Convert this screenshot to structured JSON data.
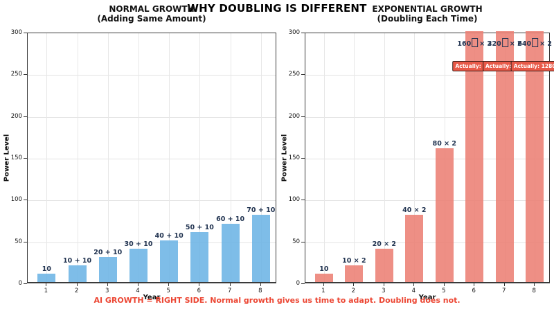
{
  "figure": {
    "title": "WHY DOUBLING IS DIFFERENT",
    "caption": "AI GROWTH = RIGHT SIDE. Normal growth gives us time to adapt. Doubling does not."
  },
  "colors": {
    "normal_bar": "#6cb4e5",
    "exponential_bar": "#ec8074",
    "value_label_text": "#223451",
    "caption_text": "#ec4633",
    "badge_background": "#e85948",
    "badge_border": "#3b1f1a",
    "badge_text": "#ffffff",
    "gridline": "#e3e3e3",
    "axis_spine": "#3a3a3a"
  },
  "chart_data": [
    {
      "type": "bar",
      "title": "NORMAL GROWTH",
      "subtitle": "(Adding Same Amount)",
      "xlabel": "Year",
      "ylabel": "Power Level",
      "categories": [
        "1",
        "2",
        "3",
        "4",
        "5",
        "6",
        "7",
        "8"
      ],
      "values": [
        10,
        20,
        30,
        40,
        50,
        60,
        70,
        80
      ],
      "bar_labels": [
        "10",
        "10 + 10",
        "20 + 10",
        "30 + 10",
        "40 + 10",
        "50 + 10",
        "60 + 10",
        "70 + 10"
      ],
      "bar_color": "#6cb4e5",
      "ylim": [
        0,
        300
      ],
      "yticks": [
        "0",
        "50",
        "100",
        "150",
        "200",
        "250",
        "300"
      ],
      "grid": true,
      "legend_position": "none"
    },
    {
      "type": "bar",
      "title": "EXPONENTIAL GROWTH",
      "subtitle": "(Doubling Each Time)",
      "xlabel": "Year",
      "ylabel": "Power Level",
      "categories": [
        "1",
        "2",
        "3",
        "4",
        "5",
        "6",
        "7",
        "8"
      ],
      "values": [
        10,
        20,
        40,
        80,
        160,
        320,
        640,
        1280
      ],
      "bar_labels": [
        "10",
        "10 × 2",
        "20 × 2",
        "40 × 2",
        "80 × 2",
        "160 × 2",
        "320 × 2",
        "640 × 2"
      ],
      "overflow_annotations": [
        {
          "category": "6",
          "label_before": "160",
          "label_after": "× 2",
          "badge": "Actually: 320"
        },
        {
          "category": "7",
          "label_before": "320",
          "label_after": "× 2",
          "badge": "Actually: 640"
        },
        {
          "category": "8",
          "label_before": "640",
          "label_after": "× 2",
          "badge": "Actually: 1280"
        }
      ],
      "bar_color": "#ec8074",
      "ylim": [
        0,
        300
      ],
      "yticks": [
        "0",
        "50",
        "100",
        "150",
        "200",
        "250",
        "300"
      ],
      "grid": true,
      "legend_position": "none"
    }
  ]
}
